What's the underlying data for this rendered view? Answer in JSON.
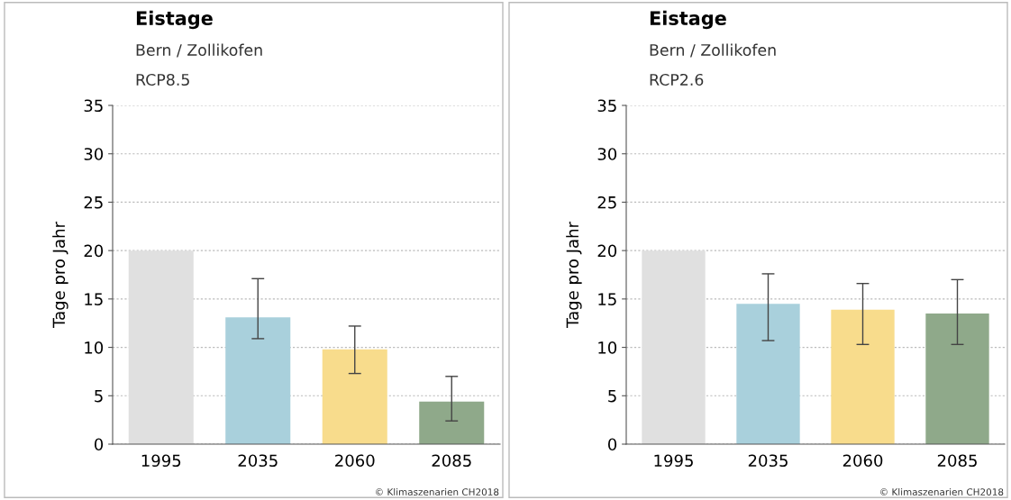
{
  "chart_data": [
    {
      "type": "bar",
      "title": "Eistage",
      "subtitle": "Bern / Zollikofen",
      "ylabel": "Tage pro Jahr",
      "categories": [
        "1995",
        "2035",
        "2060",
        "2085"
      ],
      "values": [
        20,
        13.1,
        9.8,
        4.4
      ],
      "colors": [
        "#e0e0e0",
        "#a9d0dc",
        "#f8dc8c",
        "#8fa98a"
      ],
      "errors": [
        null,
        [
          10.9,
          17.1
        ],
        [
          7.3,
          12.2
        ],
        [
          2.4,
          7.0
        ]
      ],
      "ylim": [
        0,
        35
      ],
      "yticks": [
        0,
        5,
        10,
        15,
        20,
        25,
        30,
        35
      ],
      "grid": "y",
      "annotations": [
        "RCP8.5",
        "© Klimaszenarien CH2018"
      ]
    },
    {
      "type": "bar",
      "title": "Eistage",
      "subtitle": "Bern / Zollikofen",
      "ylabel": "Tage pro Jahr",
      "categories": [
        "1995",
        "2035",
        "2060",
        "2085"
      ],
      "values": [
        20,
        14.5,
        13.9,
        13.5
      ],
      "colors": [
        "#e0e0e0",
        "#a9d0dc",
        "#f8dc8c",
        "#8fa98a"
      ],
      "errors": [
        null,
        [
          10.7,
          17.6
        ],
        [
          10.3,
          16.6
        ],
        [
          10.3,
          17.0
        ]
      ],
      "ylim": [
        0,
        35
      ],
      "yticks": [
        0,
        5,
        10,
        15,
        20,
        25,
        30,
        35
      ],
      "grid": "y",
      "annotations": [
        "RCP2.6",
        "© Klimaszenarien CH2018"
      ]
    }
  ]
}
